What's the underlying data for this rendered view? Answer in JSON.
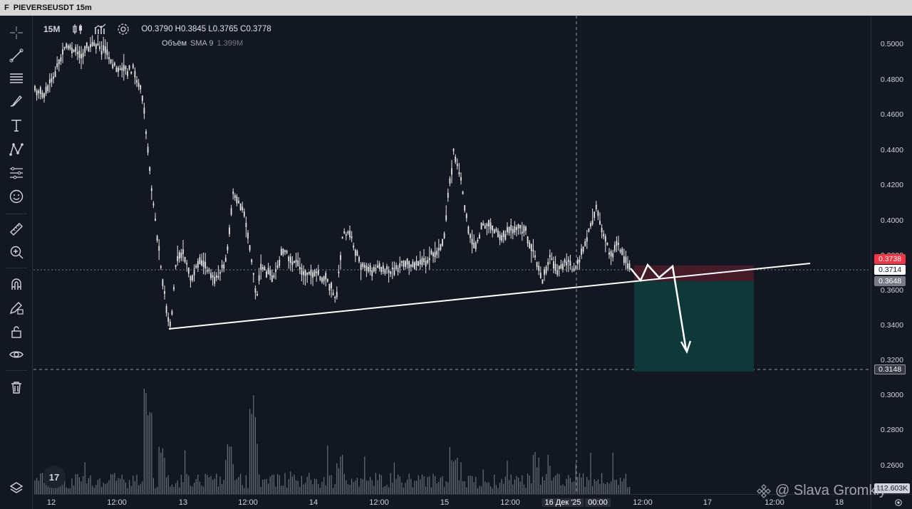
{
  "window": {
    "logo": "F",
    "title": "PIEVERSEUSDT 15m"
  },
  "legend": {
    "interval": "15M",
    "open": "O0.3790",
    "high": "H0.3845",
    "low": "L0.3765",
    "close": "C0.3778",
    "volume_name": "Объём",
    "volume_ma": "SMA 9",
    "volume_value": "1.399M"
  },
  "toolbar": {
    "tools": [
      "crosshair-icon",
      "trend-line-icon",
      "horizontal-lines-icon",
      "brush-icon",
      "text-icon",
      "pattern-icon",
      "forecast-icon",
      "emoji-icon",
      "ruler-icon",
      "zoom-in-icon",
      "magnet-icon",
      "pencil-lock-icon",
      "lock-icon",
      "eye-icon",
      "trash-icon"
    ]
  },
  "price_axis": {
    "labels": [
      "0.5000",
      "0.4800",
      "0.4600",
      "0.4400",
      "0.4200",
      "0.4000",
      "0.3800",
      "0.3600",
      "0.3400",
      "0.3200",
      "0.3000",
      "0.2800",
      "0.2600"
    ],
    "tags": {
      "stop": "0.3738",
      "current": "0.3714",
      "entry": "0.3648",
      "target": "0.3148",
      "volume": "112.603K"
    }
  },
  "time_axis": {
    "labels": [
      "12",
      "12:00",
      "13",
      "12:00",
      "14",
      "12:00",
      "15",
      "12:00",
      "16 Дек '25",
      "00:00",
      "12:00",
      "17",
      "12:00",
      "18"
    ]
  },
  "watermark": "@ Slava Gromkiy",
  "tv_logo": "17",
  "colors": {
    "background": "#131722",
    "candles": "#e6e6e6",
    "stop_zone": "#4a1c28",
    "target_zone": "#0f3a3a",
    "stop_tag": "#f23645",
    "grey_tag": "#787b86"
  }
}
